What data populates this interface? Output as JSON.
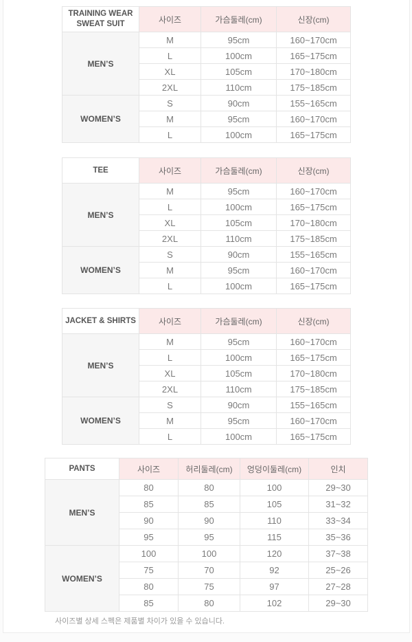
{
  "page": {
    "footnote": "사이즈별 상세 스펙은 제품별 차이가 있을 수 있습니다."
  },
  "colors": {
    "header_pink": "#fce9e9",
    "label_gray": "#f6f6f6",
    "border": "#e4e4e4",
    "data_text": "#7a7a7a",
    "label_text": "#555555"
  },
  "tables": [
    {
      "title": "TRAINING WEAR SWEAT SUIT",
      "columns": [
        "사이즈",
        "가슴둘레(cm)",
        "신장(cm)"
      ],
      "groups": [
        {
          "label": "MEN’S",
          "rows": [
            [
              "M",
              "95cm",
              "160~170cm"
            ],
            [
              "L",
              "100cm",
              "165~175cm"
            ],
            [
              "XL",
              "105cm",
              "170~180cm"
            ],
            [
              "2XL",
              "110cm",
              "175~185cm"
            ]
          ]
        },
        {
          "label": "WOMEN’S",
          "rows": [
            [
              "S",
              "90cm",
              "155~165cm"
            ],
            [
              "M",
              "95cm",
              "160~170cm"
            ],
            [
              "L",
              "100cm",
              "165~175cm"
            ]
          ]
        }
      ]
    },
    {
      "title": "TEE",
      "columns": [
        "사이즈",
        "가슴둘레(cm)",
        "신장(cm)"
      ],
      "groups": [
        {
          "label": "MEN’S",
          "rows": [
            [
              "M",
              "95cm",
              "160~170cm"
            ],
            [
              "L",
              "100cm",
              "165~175cm"
            ],
            [
              "XL",
              "105cm",
              "170~180cm"
            ],
            [
              "2XL",
              "110cm",
              "175~185cm"
            ]
          ]
        },
        {
          "label": "WOMEN’S",
          "rows": [
            [
              "S",
              "90cm",
              "155~165cm"
            ],
            [
              "M",
              "95cm",
              "160~170cm"
            ],
            [
              "L",
              "100cm",
              "165~175cm"
            ]
          ]
        }
      ]
    },
    {
      "title": "JACKET & SHIRTS",
      "columns": [
        "사이즈",
        "가슴둘레(cm)",
        "신장(cm)"
      ],
      "groups": [
        {
          "label": "MEN’S",
          "rows": [
            [
              "M",
              "95cm",
              "160~170cm"
            ],
            [
              "L",
              "100cm",
              "165~175cm"
            ],
            [
              "XL",
              "105cm",
              "170~180cm"
            ],
            [
              "2XL",
              "110cm",
              "175~185cm"
            ]
          ]
        },
        {
          "label": "WOMEN’S",
          "rows": [
            [
              "S",
              "90cm",
              "155~165cm"
            ],
            [
              "M",
              "95cm",
              "160~170cm"
            ],
            [
              "L",
              "100cm",
              "165~175cm"
            ]
          ]
        }
      ]
    },
    {
      "title": "PANTS",
      "columns": [
        "사이즈",
        "허리둘레(cm)",
        "엉덩이둘레(cm)",
        "인치"
      ],
      "groups": [
        {
          "label": "MEN’S",
          "rows": [
            [
              "80",
              "80",
              "100",
              "29~30"
            ],
            [
              "85",
              "85",
              "105",
              "31~32"
            ],
            [
              "90",
              "90",
              "110",
              "33~34"
            ],
            [
              "95",
              "95",
              "115",
              "35~36"
            ]
          ]
        },
        {
          "label": "WOMEN’S",
          "rows": [
            [
              "100",
              "100",
              "120",
              "37~38"
            ],
            [
              "75",
              "70",
              "92",
              "25~26"
            ],
            [
              "80",
              "75",
              "97",
              "27~28"
            ],
            [
              "85",
              "80",
              "102",
              "29~30"
            ]
          ]
        }
      ]
    }
  ]
}
